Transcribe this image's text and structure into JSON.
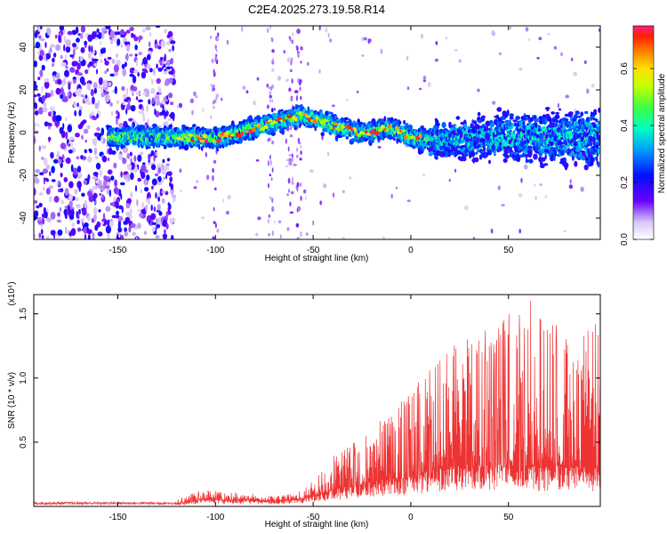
{
  "title": "C2E4.2025.273.19.58.R14",
  "chart_data": [
    {
      "type": "heatmap",
      "name": "spectrogram",
      "title": "C2E4.2025.273.19.58.R14",
      "xlabel": "Height of straight line (km)",
      "ylabel": "Frequency (Hz)",
      "xlim": [
        -193,
        97
      ],
      "ylim": [
        -50,
        50
      ],
      "xticks": [
        -150,
        -100,
        -50,
        0,
        50
      ],
      "yticks": [
        -40,
        -20,
        0,
        20,
        40
      ],
      "colorbar": {
        "label": "Normalized spectral amplitude",
        "range": [
          0.0,
          0.75
        ],
        "ticks": [
          0.0,
          0.2,
          0.4,
          0.6
        ],
        "tick_labels": [
          "0.0",
          "0.2",
          "0.4",
          "0.6"
        ]
      },
      "ridge": {
        "x": [
          -155,
          -120,
          -100,
          -80,
          -65,
          -55,
          -45,
          -35,
          -25,
          -10,
          0,
          10,
          25,
          50,
          75,
          97
        ],
        "freq": [
          -2,
          -2,
          -3,
          2,
          6,
          8,
          5,
          2,
          0,
          2,
          -2,
          -4,
          -3,
          -2,
          -2,
          -3
        ],
        "peak_amplitude": 0.75
      },
      "noise_region_x": [
        -193,
        -121
      ]
    },
    {
      "type": "line",
      "name": "snr",
      "xlabel": "Height of straight line (km)",
      "ylabel": "SNR (10 * v/v)",
      "y_multiplier": "(x10⁴)",
      "xlim": [
        -193,
        97
      ],
      "ylim": [
        0,
        1.65
      ],
      "xticks": [
        -150,
        -100,
        -50,
        0,
        50
      ],
      "yticks": [
        0.5,
        1.0,
        1.5
      ],
      "ytick_labels": [
        "0.5",
        "1.0",
        "1.5"
      ],
      "series": [
        {
          "name": "SNR",
          "color": "#ee3333",
          "envelope": {
            "x": [
              -193,
              -120,
              -115,
              -108,
              -100,
              -90,
              -80,
              -70,
              -60,
              -55,
              -50,
              -45,
              -40,
              -30,
              -20,
              -10,
              0,
              10,
              20,
              30,
              40,
              50,
              60,
              70,
              80,
              90,
              97
            ],
            "baseline": [
              0.02,
              0.02,
              0.03,
              0.05,
              0.05,
              0.05,
              0.05,
              0.04,
              0.05,
              0.06,
              0.08,
              0.1,
              0.12,
              0.15,
              0.18,
              0.2,
              0.22,
              0.26,
              0.28,
              0.3,
              0.3,
              0.32,
              0.3,
              0.28,
              0.3,
              0.28,
              0.3
            ],
            "peak": [
              0.04,
              0.05,
              0.08,
              0.14,
              0.12,
              0.11,
              0.1,
              0.08,
              0.1,
              0.13,
              0.2,
              0.3,
              0.4,
              0.5,
              0.65,
              0.75,
              0.9,
              1.1,
              1.3,
              1.35,
              1.4,
              1.5,
              1.65,
              1.55,
              1.4,
              1.45,
              1.45
            ]
          }
        }
      ]
    }
  ]
}
